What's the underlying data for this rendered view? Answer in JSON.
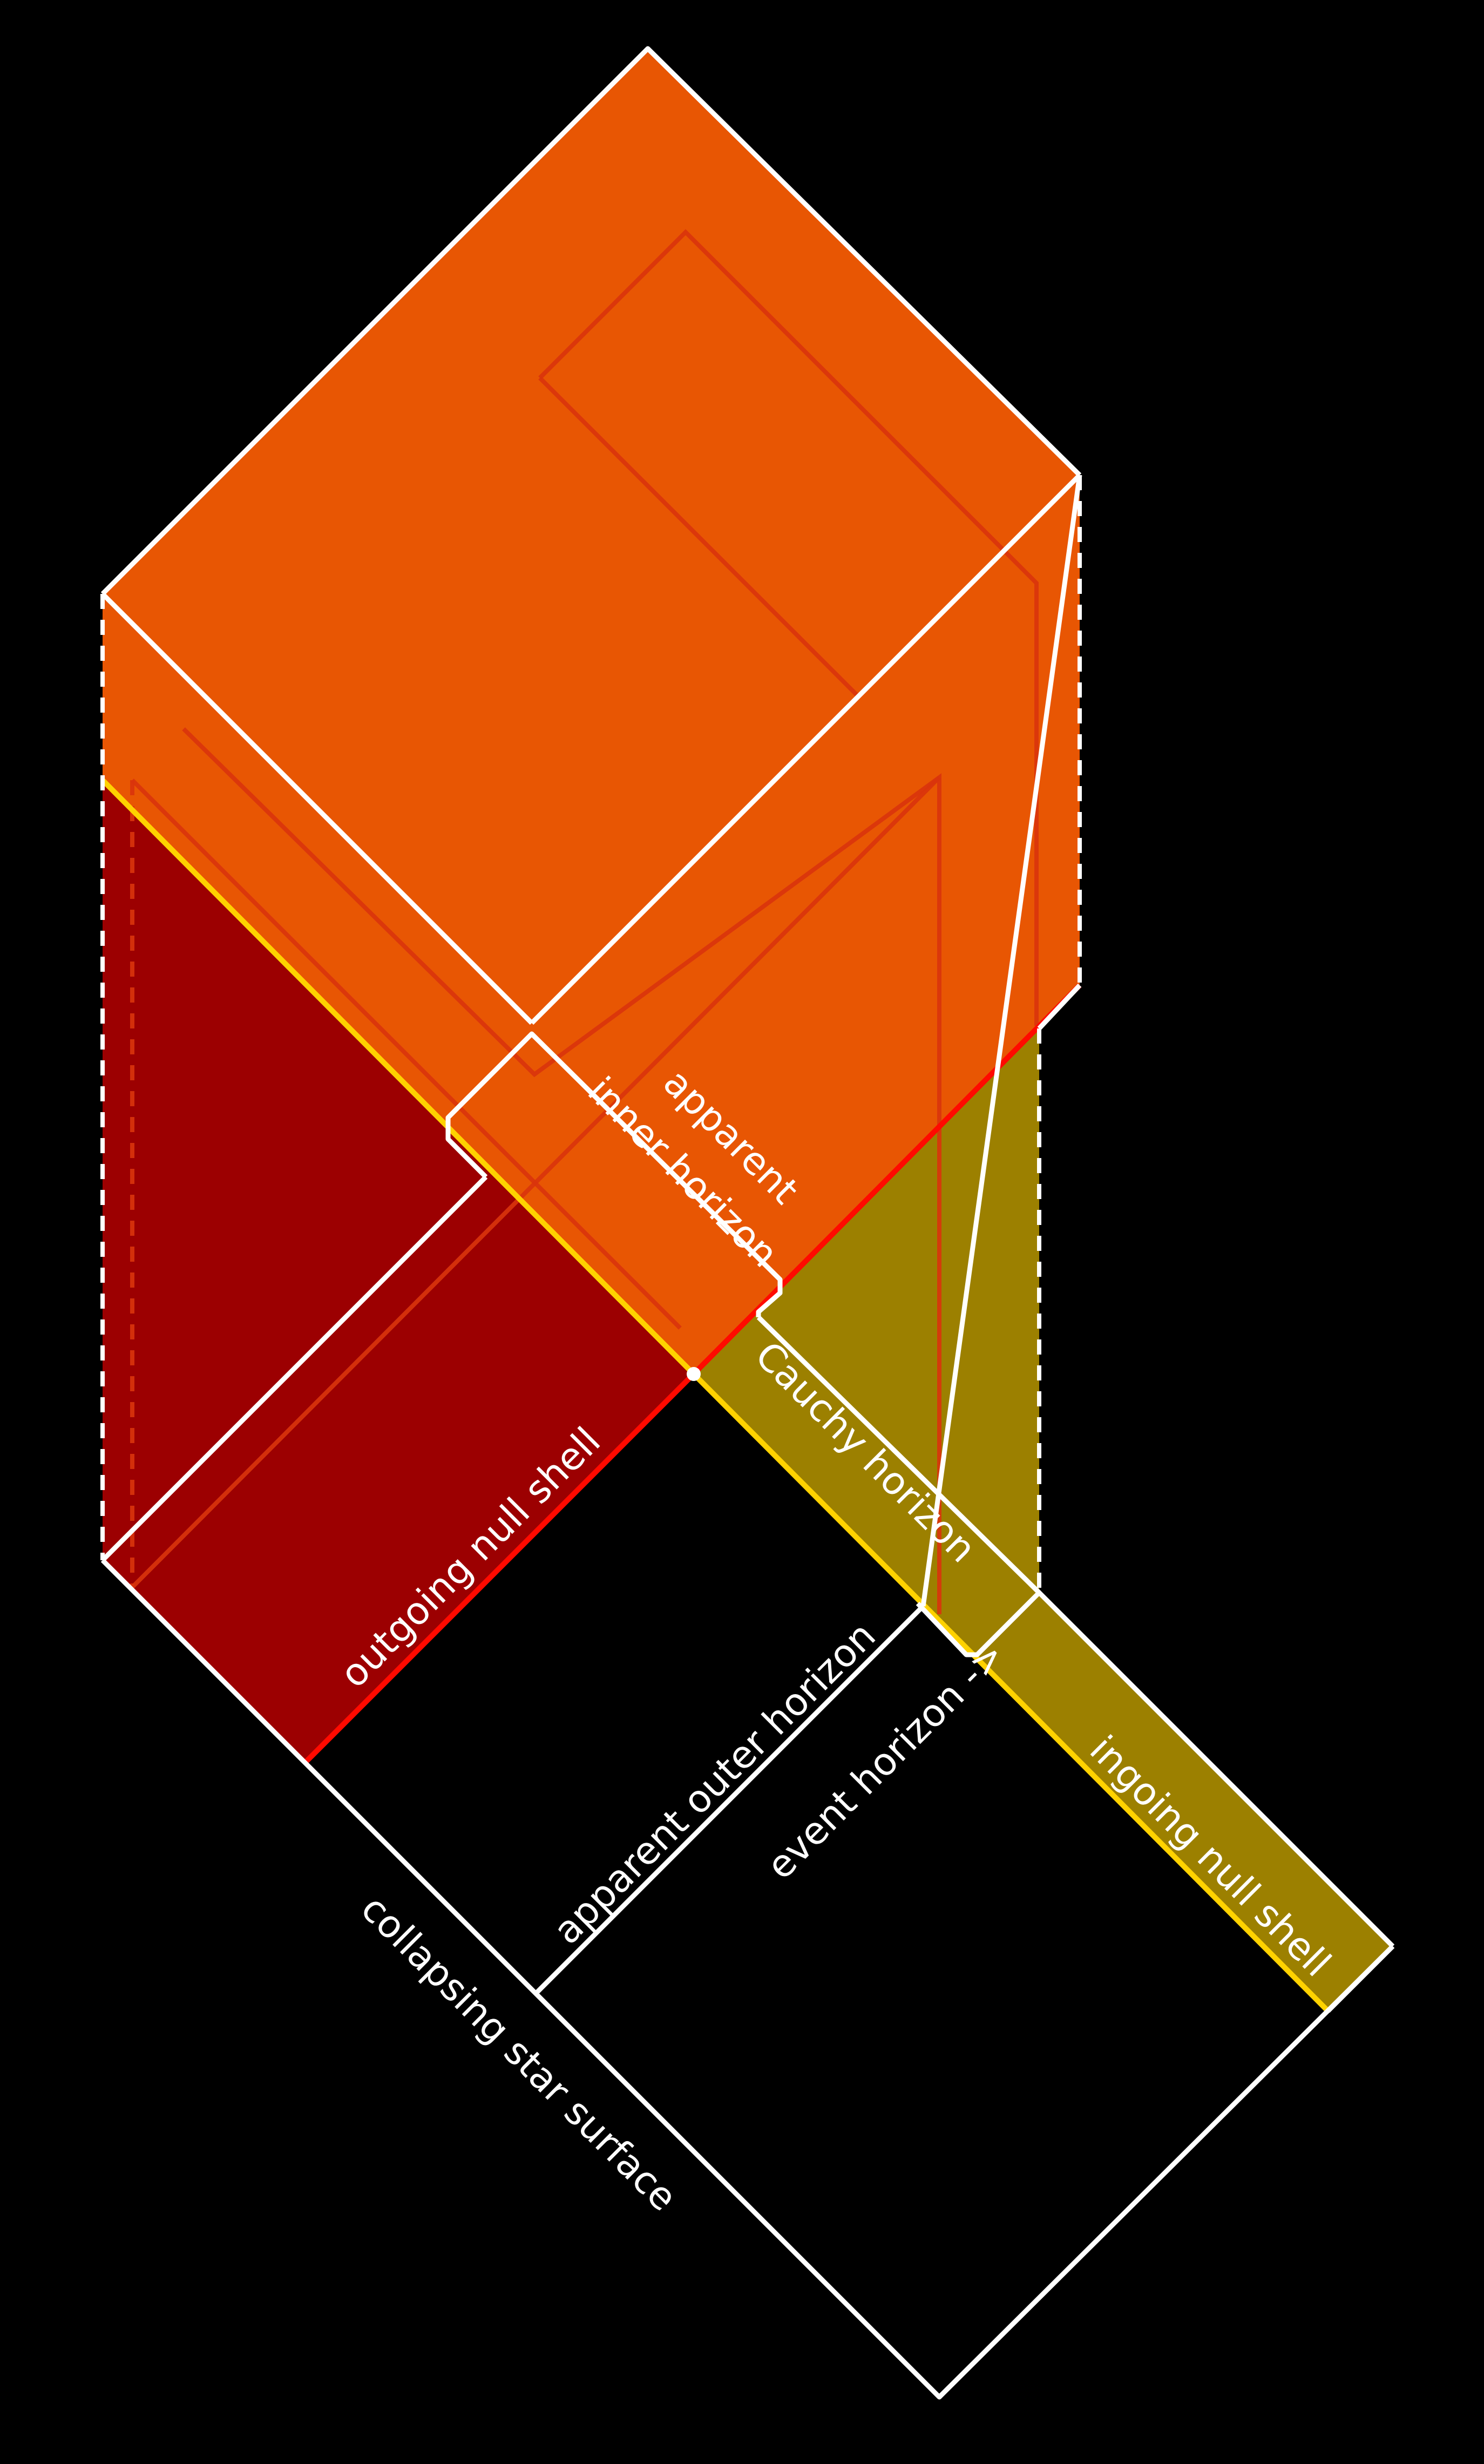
{
  "colors": {
    "background": "#000000",
    "orange_region": "#e85603",
    "red_region": "#9c0001",
    "olive_region": "#9c8000",
    "white_line": "#ffffff",
    "yellow_line": "#ffd200",
    "red_line": "#ff0a00",
    "faint_line": "#d9340c"
  },
  "labels": {
    "apparent_inner_horizon_1": "apparent",
    "apparent_inner_horizon_2": "inner horizon",
    "cauchy_horizon": "Cauchy horizon",
    "outgoing_null_shell": "outgoing null shell",
    "apparent_outer_horizon": "apparent outer horizon",
    "event_horizon": "event horizon ->",
    "ingoing_null_shell": "ingoing null shell",
    "collapsing_star_surface": "collapsing star surface"
  }
}
